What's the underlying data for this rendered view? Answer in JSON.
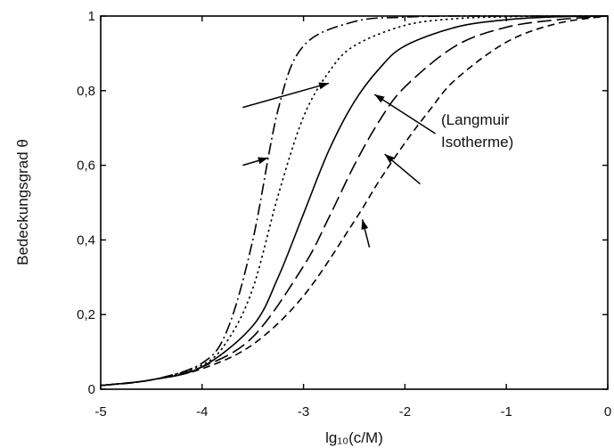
{
  "chart_data": {
    "type": "line",
    "xlabel": "lg₁₀(c/M)",
    "ylabel": "Bedeckungsgrad θ",
    "xlim": [
      -5,
      0
    ],
    "ylim": [
      0,
      1
    ],
    "xticks": [
      -5,
      -4,
      -3,
      -2,
      -1,
      0
    ],
    "xtick_labels": [
      "-5",
      "-4",
      "-3",
      "-2",
      "-1",
      "0"
    ],
    "yticks": [
      0,
      0.2,
      0.4,
      0.6,
      0.8,
      1
    ],
    "ytick_labels": [
      "0",
      "0,2",
      "0,4",
      "0,6",
      "0,8",
      "1"
    ],
    "grid": false,
    "annotation": [
      "(Langmuir",
      "Isotherme)"
    ],
    "series": [
      {
        "style": "dash-dot",
        "x": [
          -5,
          -4.5,
          -4,
          -3.75,
          -3.5,
          -3.25,
          -3.0,
          -2.5,
          -2.0,
          -1.5,
          -1.0,
          -0.5,
          0
        ],
        "values": [
          0.01,
          0.025,
          0.07,
          0.16,
          0.4,
          0.75,
          0.92,
          0.985,
          0.997,
          1.0,
          1.0,
          1.0,
          1.0
        ]
      },
      {
        "style": "dotted",
        "x": [
          -5,
          -4.5,
          -4,
          -3.75,
          -3.5,
          -3.25,
          -3.0,
          -2.75,
          -2.5,
          -2.0,
          -1.5,
          -1.0,
          -0.5,
          0
        ],
        "values": [
          0.01,
          0.025,
          0.065,
          0.13,
          0.27,
          0.52,
          0.73,
          0.85,
          0.92,
          0.975,
          0.993,
          0.998,
          1.0,
          1.0
        ]
      },
      {
        "style": "solid",
        "x": [
          -5,
          -4.5,
          -4,
          -3.5,
          -3.25,
          -3.0,
          -2.75,
          -2.5,
          -2.25,
          -2.0,
          -1.5,
          -1.0,
          -0.5,
          0
        ],
        "values": [
          0.01,
          0.025,
          0.06,
          0.17,
          0.3,
          0.47,
          0.64,
          0.77,
          0.86,
          0.92,
          0.97,
          0.99,
          0.998,
          1.0
        ]
      },
      {
        "style": "long-dash",
        "x": [
          -5,
          -4.5,
          -4,
          -3.5,
          -3.0,
          -2.75,
          -2.5,
          -2.25,
          -2.0,
          -1.5,
          -1.0,
          -0.5,
          0
        ],
        "values": [
          0.01,
          0.025,
          0.06,
          0.14,
          0.33,
          0.46,
          0.6,
          0.72,
          0.81,
          0.92,
          0.97,
          0.99,
          1.0
        ]
      },
      {
        "style": "short-dash",
        "x": [
          -5,
          -4.5,
          -4,
          -3.5,
          -3.0,
          -2.5,
          -2.25,
          -2.0,
          -1.75,
          -1.5,
          -1.0,
          -0.5,
          0
        ],
        "values": [
          0.01,
          0.025,
          0.055,
          0.12,
          0.25,
          0.45,
          0.56,
          0.66,
          0.75,
          0.83,
          0.93,
          0.98,
          1.0
        ]
      }
    ],
    "arrows": [
      {
        "from": [
          -3.6,
          0.6
        ],
        "to": [
          -3.35,
          0.62
        ]
      },
      {
        "from": [
          -3.6,
          0.755
        ],
        "to": [
          -2.75,
          0.82
        ]
      },
      {
        "from": [
          -1.7,
          0.685
        ],
        "to": [
          -2.3,
          0.79
        ]
      },
      {
        "from": [
          -1.85,
          0.55
        ],
        "to": [
          -2.2,
          0.63
        ]
      },
      {
        "from": [
          -2.35,
          0.38
        ],
        "to": [
          -2.42,
          0.455
        ]
      }
    ]
  }
}
